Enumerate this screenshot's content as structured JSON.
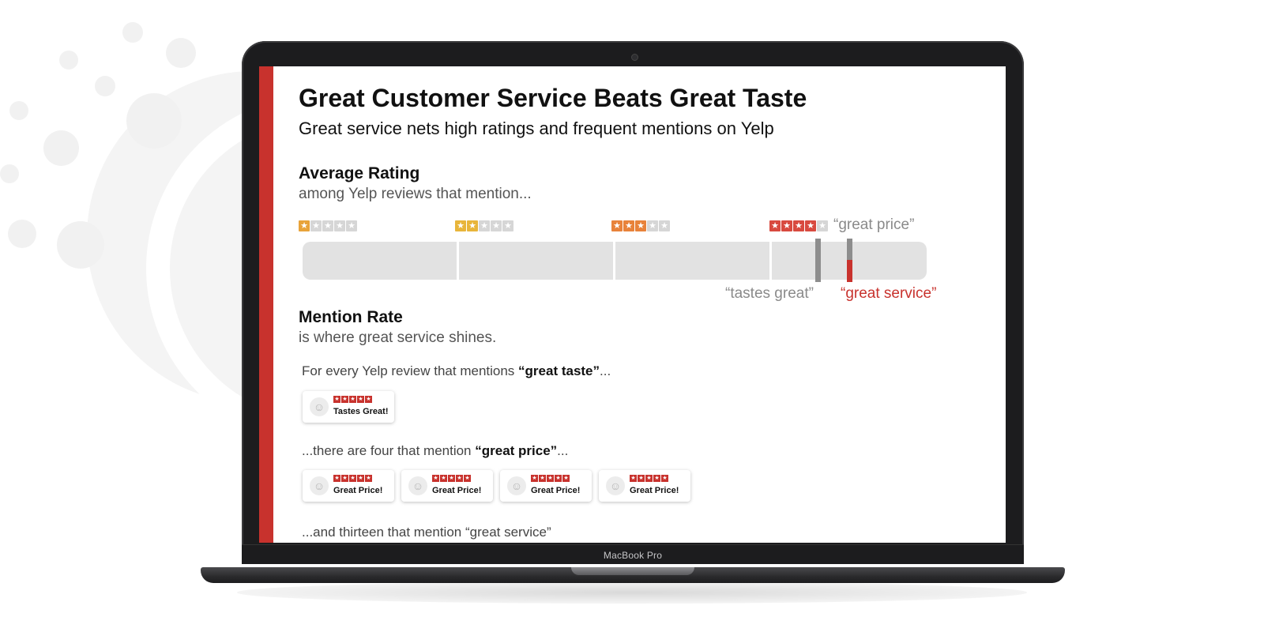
{
  "screen": {
    "title": "Great Customer Service Beats Great Taste",
    "subtitle": "Great service nets high ratings and frequent mentions on Yelp",
    "average_rating": {
      "heading": "Average Rating",
      "subheading": "among Yelp reviews that mention...",
      "scale": [
        {
          "stars": 1,
          "color": "#e8a33a"
        },
        {
          "stars": 2,
          "color": "#e8b53a"
        },
        {
          "stars": 3,
          "color": "#e8823a"
        },
        {
          "stars": 4,
          "color": "#d84a3f"
        }
      ],
      "markers": [
        {
          "label": "“tastes great”",
          "rating": 4.3
        },
        {
          "label": "“great price”",
          "rating": 4.5
        },
        {
          "label": "“great service”",
          "rating": 4.5
        }
      ]
    },
    "mention_rate": {
      "heading": "Mention Rate",
      "subheading": "is where great service shines.",
      "sentence1_pre": "For every Yelp review that mentions ",
      "sentence1_bold": "“great taste”",
      "sentence1_post": "...",
      "taste_cards": [
        "Tastes Great!"
      ],
      "sentence2_pre": "...there are four that mention ",
      "sentence2_bold": "“great price”",
      "sentence2_post": "...",
      "price_cards": [
        "Great Price!",
        "Great Price!",
        "Great Price!",
        "Great Price!"
      ],
      "sentence3_partial": "...and thirteen that mention “great service”"
    }
  },
  "laptop": {
    "model_label": "MacBook Pro"
  },
  "colors": {
    "accent_red": "#c8322d",
    "track_gray": "#e2e2e2",
    "marker_gray": "#8d8d8d"
  }
}
